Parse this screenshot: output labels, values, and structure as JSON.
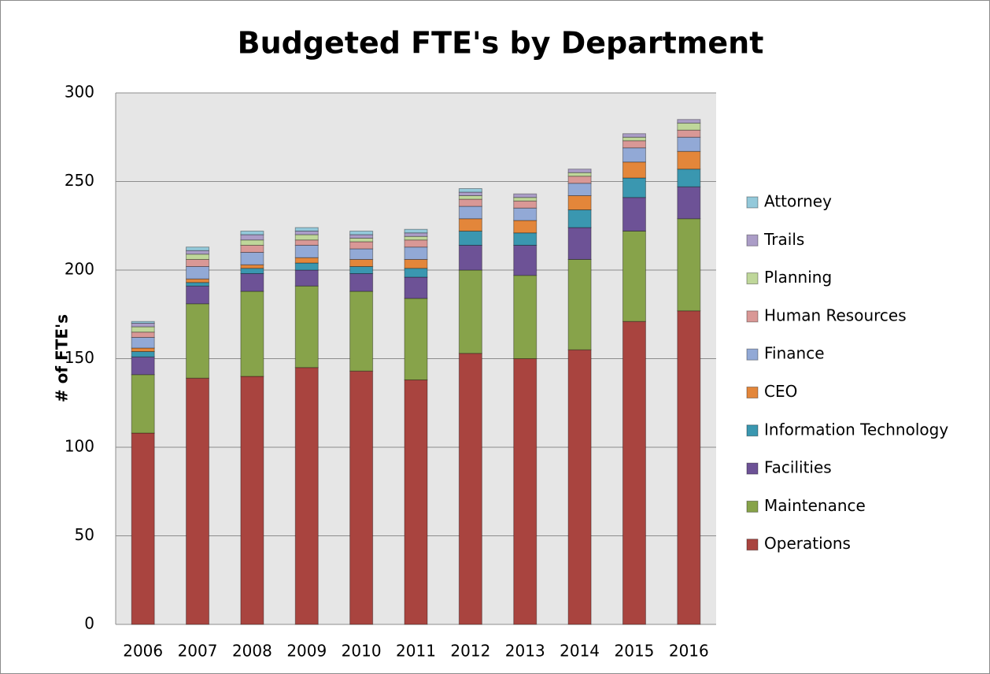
{
  "chart_data": {
    "type": "stacked_bar",
    "title": "Budgeted FTE's by Department",
    "y_label": "# of FTE's",
    "categories": [
      "2006",
      "2007",
      "2008",
      "2009",
      "2010",
      "2011",
      "2012",
      "2013",
      "2014",
      "2015",
      "2016"
    ],
    "series": [
      {
        "name": "Operations",
        "color": "#a9443f",
        "values": [
          108,
          139,
          140,
          145,
          143,
          138,
          153,
          150,
          155,
          171,
          177
        ]
      },
      {
        "name": "Maintenance",
        "color": "#87a34a",
        "values": [
          33,
          42,
          48,
          46,
          45,
          46,
          47,
          47,
          51,
          51,
          52
        ]
      },
      {
        "name": "Facilities",
        "color": "#6d5296",
        "values": [
          10,
          10,
          10,
          9,
          10,
          12,
          14,
          17,
          18,
          19,
          18
        ]
      },
      {
        "name": "Information Technology",
        "color": "#3a97b0",
        "values": [
          3,
          2,
          3,
          4,
          4,
          5,
          8,
          7,
          10,
          11,
          10
        ]
      },
      {
        "name": "CEO",
        "color": "#e3863a",
        "values": [
          2,
          2,
          2,
          3,
          4,
          5,
          7,
          7,
          8,
          9,
          10
        ]
      },
      {
        "name": "Finance",
        "color": "#92a9d6",
        "values": [
          6,
          7,
          7,
          7,
          6,
          7,
          7,
          7,
          7,
          8,
          8
        ]
      },
      {
        "name": "Human Resources",
        "color": "#d99896",
        "values": [
          3,
          4,
          4,
          3,
          4,
          4,
          4,
          4,
          4,
          4,
          4
        ]
      },
      {
        "name": "Planning",
        "color": "#bfd79a",
        "values": [
          3,
          3,
          3,
          3,
          2,
          2,
          2,
          2,
          2,
          2,
          4
        ]
      },
      {
        "name": "Trails",
        "color": "#ab9dc7",
        "values": [
          2,
          2,
          3,
          2,
          2,
          2,
          2,
          2,
          2,
          2,
          2
        ]
      },
      {
        "name": "Attorney",
        "color": "#94c9da",
        "values": [
          1,
          2,
          2,
          2,
          2,
          2,
          2,
          0,
          0,
          0,
          0
        ]
      }
    ],
    "ylim": [
      0,
      300
    ],
    "yticks": [
      0,
      50,
      100,
      150,
      200,
      250,
      300
    ],
    "grid": true,
    "legend": "right"
  }
}
